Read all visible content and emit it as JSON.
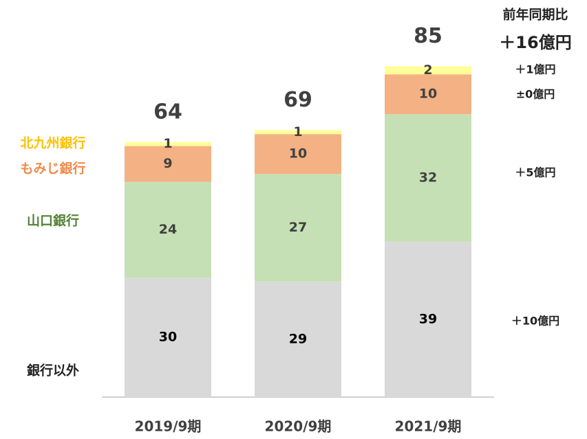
{
  "chart_data": {
    "type": "stacked_bar",
    "categories": [
      "2019/9期",
      "2020/9期",
      "2021/9期"
    ],
    "series": [
      {
        "name": "銀行以外",
        "color": "#d9d9d9",
        "label_color": "#222222",
        "values": [
          30,
          29,
          39
        ],
        "change": "＋10億円"
      },
      {
        "name": "山口銀行",
        "color": "#c5e0b4",
        "label_color": "#548235",
        "values": [
          24,
          27,
          32
        ],
        "change": "＋5億円"
      },
      {
        "name": "もみじ銀行",
        "color": "#f4b183",
        "label_color": "#f08a4b",
        "values": [
          9,
          10,
          10
        ],
        "change": "±0億円"
      },
      {
        "name": "北九州銀行",
        "color": "#ffff99",
        "label_color": "#ffc000",
        "values": [
          1,
          1,
          2
        ],
        "change": "＋1億円"
      }
    ],
    "totals": [
      64,
      69,
      85
    ],
    "change_title": "前年同期比",
    "change_total": "＋16億円"
  }
}
